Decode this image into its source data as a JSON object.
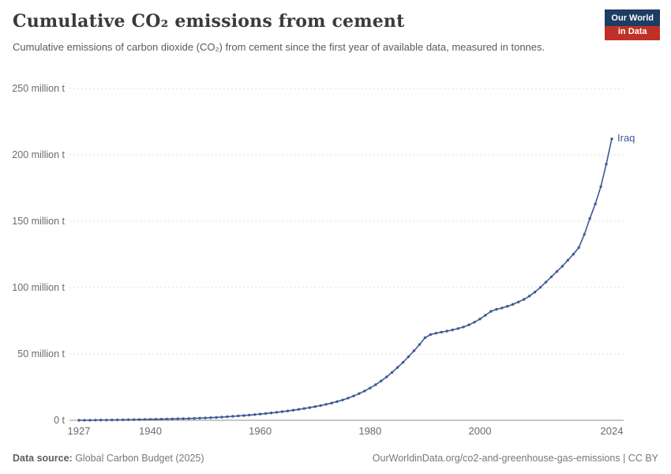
{
  "header": {
    "title": "Cumulative CO₂ emissions from cement",
    "subtitle": "Cumulative emissions of carbon dioxide (CO₂) from cement since the first year of available data, measured in tonnes.",
    "logo": {
      "line1": "Our World",
      "line2": "in Data",
      "bg_color": "#1d3d63",
      "accent_color": "#bf3127"
    }
  },
  "footer": {
    "source_label": "Data source:",
    "source_value": " Global Carbon Budget (2025)",
    "right_text": "OurWorldinData.org/co2-and-greenhouse-gas-emissions | CC BY"
  },
  "chart_data": {
    "type": "line",
    "title": "Cumulative CO₂ emissions from cement",
    "series_label": "Iraq",
    "line_color": "#3d5a96",
    "grid": "dashed-horizontal",
    "legend_position": "end-of-line",
    "ylim": [
      0,
      250
    ],
    "ytick_interval": 50,
    "ytick_labels": [
      "0 t",
      "50 million t",
      "100 million t",
      "150 million t",
      "200 million t",
      "250 million t"
    ],
    "xticks": [
      1927,
      1940,
      1960,
      1980,
      2000,
      2024
    ],
    "x": [
      1927,
      1928,
      1929,
      1930,
      1931,
      1932,
      1933,
      1934,
      1935,
      1936,
      1937,
      1938,
      1939,
      1940,
      1941,
      1942,
      1943,
      1944,
      1945,
      1946,
      1947,
      1948,
      1949,
      1950,
      1951,
      1952,
      1953,
      1954,
      1955,
      1956,
      1957,
      1958,
      1959,
      1960,
      1961,
      1962,
      1963,
      1964,
      1965,
      1966,
      1967,
      1968,
      1969,
      1970,
      1971,
      1972,
      1973,
      1974,
      1975,
      1976,
      1977,
      1978,
      1979,
      1980,
      1981,
      1982,
      1983,
      1984,
      1985,
      1986,
      1987,
      1988,
      1989,
      1990,
      1991,
      1992,
      1993,
      1994,
      1995,
      1996,
      1997,
      1998,
      1999,
      2000,
      2001,
      2002,
      2003,
      2004,
      2005,
      2006,
      2007,
      2008,
      2009,
      2010,
      2011,
      2012,
      2013,
      2014,
      2015,
      2016,
      2017,
      2018,
      2019,
      2020,
      2021,
      2022,
      2023,
      2024
    ],
    "values": [
      0.02,
      0.05,
      0.08,
      0.12,
      0.16,
      0.2,
      0.25,
      0.3,
      0.36,
      0.42,
      0.49,
      0.56,
      0.63,
      0.7,
      0.78,
      0.86,
      0.94,
      1.03,
      1.12,
      1.22,
      1.33,
      1.45,
      1.6,
      1.75,
      1.95,
      2.15,
      2.4,
      2.65,
      2.95,
      3.25,
      3.6,
      3.95,
      4.3,
      4.7,
      5.1,
      5.55,
      6.0,
      6.5,
      7.05,
      7.6,
      8.2,
      8.85,
      9.55,
      10.3,
      11.1,
      12.0,
      13.0,
      14.1,
      15.3,
      16.7,
      18.3,
      20.1,
      22.1,
      24.3,
      26.8,
      29.6,
      32.7,
      36.1,
      39.8,
      43.7,
      47.9,
      52.4,
      57.1,
      62.2,
      64.6,
      65.6,
      66.4,
      67.2,
      68.1,
      69.1,
      70.3,
      71.9,
      73.9,
      76.3,
      79.1,
      82.1,
      83.6,
      84.6,
      85.9,
      87.4,
      89.1,
      91.1,
      93.6,
      96.6,
      100.1,
      104.1,
      108.1,
      112.1,
      116.1,
      120.6,
      125.1,
      130.1,
      140,
      152,
      163,
      176,
      193,
      212
    ],
    "unit": "million t"
  }
}
